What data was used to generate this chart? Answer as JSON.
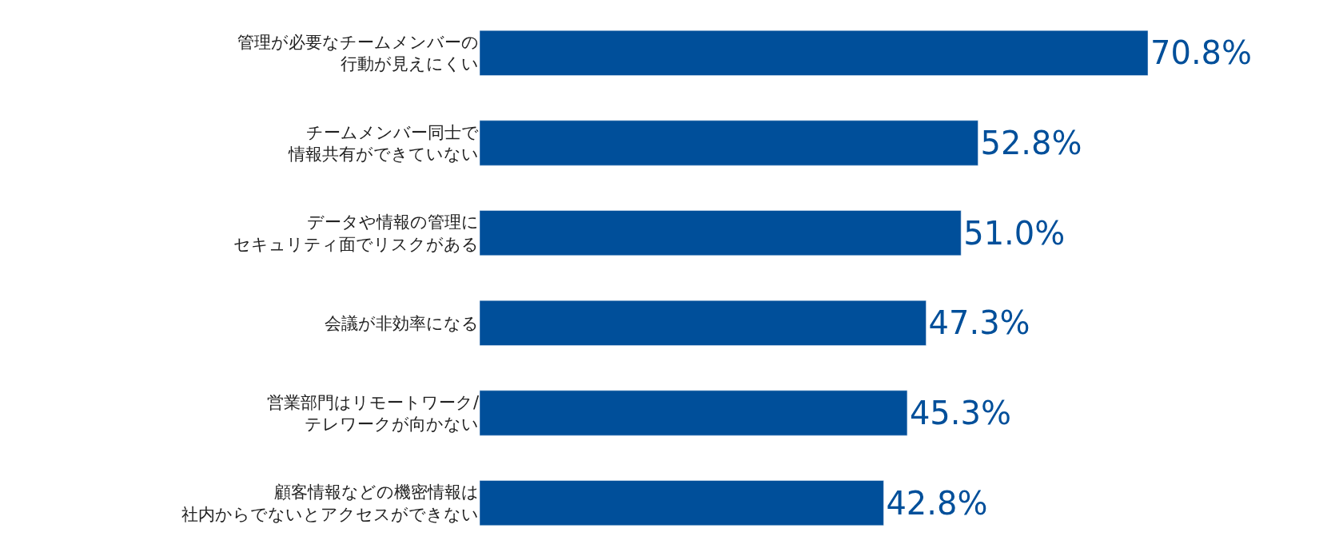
{
  "chart_data": {
    "type": "bar",
    "orientation": "horizontal",
    "categories": [
      "管理が必要なチームメンバーの行動が見えにくい",
      "チームメンバー同士で情報共有ができていない",
      "データや情報の管理にセキュリティ面でリスクがある",
      "会議が非効率になる",
      "営業部門はリモートワーク/テレワークが向かない",
      "顧客情報などの機密情報は社内からでないとアクセスができない"
    ],
    "values": [
      70.8,
      52.8,
      51.0,
      47.3,
      45.3,
      42.8
    ],
    "value_labels": [
      "70.8%",
      "52.8%",
      "51.0%",
      "47.3%",
      "45.3%",
      "42.8%"
    ],
    "color": "#004f9a"
  }
}
